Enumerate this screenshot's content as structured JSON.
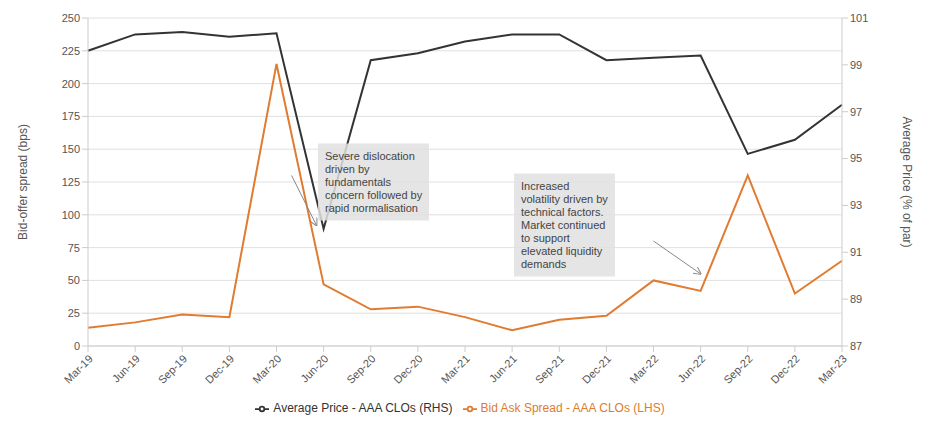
{
  "chart_data": {
    "type": "line",
    "categories": [
      "Mar-19",
      "Jun-19",
      "Sep-19",
      "Dec-19",
      "Mar-20",
      "Jun-20",
      "Sep-20",
      "Dec-20",
      "Mar-21",
      "Jun-21",
      "Sep-21",
      "Dec-21",
      "Mar-22",
      "Jun-22",
      "Sep-22",
      "Dec-22",
      "Mar-23"
    ],
    "series": [
      {
        "name": "Bid Ask Spread - AAA CLOs (LHS)",
        "color": "#E07B30",
        "values": [
          14,
          18,
          24,
          22,
          215,
          47,
          28,
          30,
          22,
          12,
          20,
          23,
          50,
          42,
          130,
          40,
          65
        ]
      },
      {
        "name": "Average Price - AAA CLOs (RHS)",
        "color": "#333333",
        "axis": "y2",
        "values": [
          99.6,
          100.3,
          100.4,
          100.2,
          100.35,
          92.0,
          99.2,
          99.5,
          100.0,
          100.3,
          100.3,
          99.2,
          99.3,
          99.4,
          95.2,
          95.8,
          97.3
        ]
      }
    ],
    "ylabel": "Bid-offer spread (bps)",
    "y2label": "Average Price (% of par)",
    "ylim": [
      0,
      250
    ],
    "yticks": [
      0,
      25,
      50,
      75,
      100,
      125,
      150,
      175,
      200,
      225,
      250
    ],
    "y2lim": [
      87,
      101
    ],
    "y2ticks": [
      87,
      89,
      91,
      93,
      95,
      97,
      99,
      101
    ],
    "annotations": [
      "Severe dislocation\ndriven by\nfundamentals\nconcern followed by\nrapid normalisation",
      "Increased\nvolatility driven by\ntechnical factors.\nMarket continued\nto support\nelevated liquidity\ndemands"
    ],
    "grid": true,
    "legend": "bottom"
  }
}
